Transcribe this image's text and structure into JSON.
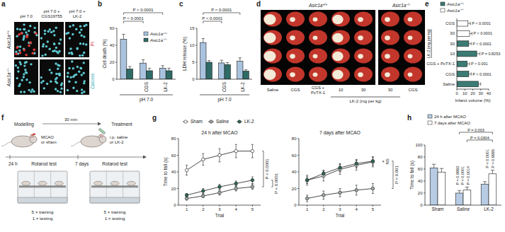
{
  "figure": {
    "panel_labels": [
      "a",
      "b",
      "c",
      "d",
      "e",
      "f",
      "g",
      "h"
    ],
    "a": {
      "columns": [
        "pH 7.0",
        "pH 7.0 + CGS19755",
        "pH 7.0 + LK-2"
      ],
      "rows": [
        "Asic1a+/+",
        "Asic1a−/−"
      ],
      "stains": [
        "Calcein",
        "PI"
      ]
    },
    "d": {
      "groups": [
        {
          "label": "Asic1a+/+",
          "columns": [
            "Saline",
            "CGS",
            "CGS + PcTX-1",
            "10",
            "30"
          ]
        },
        {
          "label": "Asic1a−/−",
          "columns": [
            "30",
            "CGS"
          ]
        }
      ],
      "dose_label": "LK-2 (mg per kg)"
    },
    "f": {
      "steps": [
        "Modelling",
        "Treatment"
      ],
      "interval": "30 min",
      "model": "MCAO or sham",
      "treatment": "i.p. saline or LK-2",
      "timepoints": [
        "24 h",
        "7 days"
      ],
      "test": [
        "Rotarod test",
        "Rotarod test"
      ],
      "protocol": [
        [
          "5 × training",
          "1 × testing"
        ],
        [
          "5 × training",
          "1 × testing"
        ]
      ]
    }
  },
  "chart_data": [
    {
      "type": "bar",
      "y_label": "Cell death (%)",
      "x_label": "pH 7.0",
      "categories": [
        null,
        "CGS",
        "LK-2"
      ],
      "series": [
        {
          "name": "Asic1a+/+",
          "color": "#a9c3df",
          "values": [
            47,
            19,
            13
          ],
          "errors": [
            6,
            4,
            3
          ]
        },
        {
          "name": "Asic1a−/−",
          "color": "#2f6b66",
          "values": [
            12,
            10,
            10
          ],
          "errors": [
            3,
            3,
            3
          ]
        }
      ],
      "ylim": [
        0,
        60
      ],
      "yticks": [
        0,
        20,
        40,
        60
      ],
      "legend": "top-right",
      "annotations": [
        "P < 0.0001",
        "P < 0.0001"
      ]
    },
    {
      "type": "bar",
      "y_label": "LDH release (%)",
      "x_label": "pH 7.0",
      "categories": [
        null,
        "CGS",
        "LK-2"
      ],
      "series": [
        {
          "color": "#a9c3df",
          "values": [
            10.8,
            4.8,
            5.3
          ],
          "errors": [
            1.2,
            0.8,
            1.0
          ]
        },
        {
          "color": "#2f6b66",
          "values": [
            5.0,
            4.3,
            2.4
          ],
          "errors": [
            0.5,
            0.6,
            0.4
          ]
        }
      ],
      "ylim": [
        0,
        15
      ],
      "yticks": [
        0,
        5,
        10,
        15
      ],
      "annotations": [
        "P < 0.0001",
        "P < 0.0001"
      ]
    },
    {
      "type": "bar",
      "orientation": "horizontal",
      "x_label": "Infarct volume (%)",
      "group_label": "LK-2 (mg per kg)",
      "categories": [
        "CGS",
        "30",
        "30",
        "10",
        "CGS + PcTX-1",
        "CGS",
        "Saline"
      ],
      "series": [
        {
          "name": "Asic1a+/+",
          "color": "#3b7b73",
          "values": [
            null,
            null,
            15,
            25,
            13,
            15,
            27
          ],
          "errors": [
            null,
            null,
            3,
            4,
            3,
            3,
            3
          ]
        },
        {
          "name": "Asic1a−/−",
          "color": "#ffffff",
          "values": [
            14,
            16,
            null,
            null,
            null,
            null,
            null
          ],
          "errors": [
            3,
            3,
            null,
            null,
            null,
            null,
            null
          ]
        }
      ],
      "xlim": [
        0,
        40
      ],
      "xticks": [
        0,
        10,
        20,
        30,
        40
      ],
      "legend": "top",
      "annotations": [
        "P < 0.0001",
        "P < 0.0001",
        "P < 0.0001",
        "P = 0.8253",
        "P < 0.001",
        "P < 0.0001"
      ]
    },
    {
      "type": "line",
      "title": "24 h after MCAO",
      "x_label": "Trial",
      "y_label": "Time to fall (s)",
      "x": [
        1,
        2,
        3,
        4,
        5
      ],
      "xlim": [
        0.5,
        5.5
      ],
      "xticks": [
        1,
        2,
        3,
        4,
        5
      ],
      "ylim": [
        0,
        80
      ],
      "yticks": [
        0,
        20,
        40,
        60,
        80
      ],
      "legend": "top",
      "series": [
        {
          "name": "Sham",
          "color": "#ffffff",
          "marker": "circle",
          "line_style": "solid",
          "values": [
            42,
            55,
            60,
            65,
            65
          ],
          "errors": [
            6,
            7,
            8,
            8,
            8
          ]
        },
        {
          "name": "Saline",
          "color": "#a0aaa8",
          "marker": "circle",
          "line_style": "solid",
          "values": [
            8,
            11,
            15,
            20,
            22
          ],
          "errors": [
            2,
            2,
            3,
            3,
            3
          ]
        },
        {
          "name": "LK-2",
          "color": "#2d6a55",
          "marker": "circle",
          "line_style": "solid",
          "values": [
            12,
            17,
            22,
            26,
            30
          ],
          "errors": [
            2,
            3,
            3,
            3,
            4
          ]
        }
      ],
      "annotations": [
        "P < 0.0001",
        "P < 0.0001"
      ]
    },
    {
      "type": "line",
      "title": "7 days after MCAO",
      "x_label": "Trial",
      "x": [
        1,
        2,
        3,
        4,
        5
      ],
      "xlim": [
        0.5,
        5.5
      ],
      "xticks": [
        1,
        2,
        3,
        4,
        5
      ],
      "ylim": [
        0,
        80
      ],
      "yticks": [
        0,
        20,
        40,
        60,
        80
      ],
      "series": [
        {
          "color": "#ffffff",
          "marker": "circle",
          "line_style": "solid",
          "values": [
            30,
            35,
            43,
            48,
            52
          ],
          "errors": [
            6,
            6,
            6,
            6,
            6
          ]
        },
        {
          "color": "#a0aaa8",
          "marker": "circle",
          "line_style": "solid",
          "values": [
            8,
            12,
            15,
            18,
            20
          ],
          "errors": [
            4,
            5,
            5,
            6,
            6
          ]
        },
        {
          "color": "#2d6a55",
          "marker": "circle",
          "line_style": "solid",
          "values": [
            30,
            38,
            45,
            50,
            53
          ],
          "errors": [
            4,
            4,
            5,
            5,
            5
          ]
        }
      ],
      "annotations": [
        "NS",
        "P < 0.001"
      ]
    },
    {
      "type": "bar",
      "y_label": "Time to fall (s)",
      "categories": [
        "Sham",
        "Saline",
        "LK-2"
      ],
      "series": [
        {
          "name": "24 h after MCAO",
          "color": "#b7cce4",
          "values": [
            62,
            20,
            35
          ],
          "errors": [
            6,
            4,
            4
          ]
        },
        {
          "name": "7 days after MCAO",
          "color": "#ffffff",
          "values": [
            55,
            25,
            52
          ],
          "errors": [
            6,
            5,
            6
          ]
        }
      ],
      "ylim": [
        0,
        100
      ],
      "yticks": [
        0,
        20,
        40,
        60,
        80,
        100
      ],
      "legend": "top-left",
      "annotations": [
        "P = 0.9993",
        "P < 0.0001",
        "P = 0.0014",
        "P < 0.0001",
        "P = 0.9995",
        "P = 0.003",
        "P = 0.0304"
      ]
    }
  ]
}
